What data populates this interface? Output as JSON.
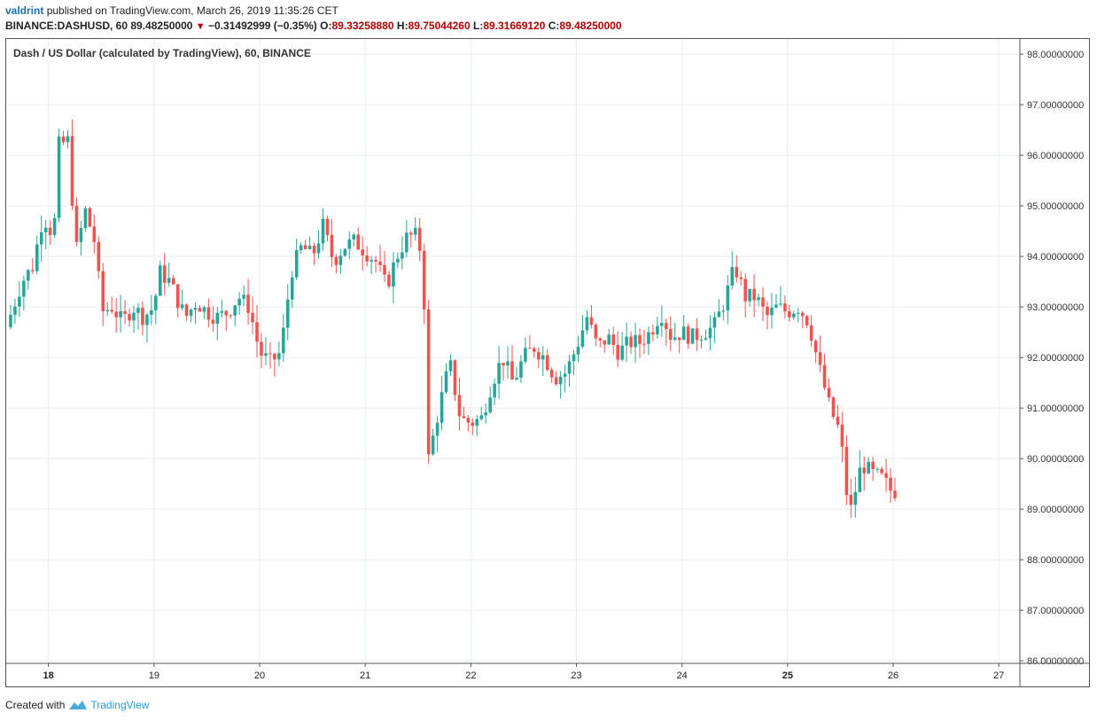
{
  "header": {
    "author": "valdrint",
    "published_text": "published on TradingView.com, March 26, 2019 11:35:26 CET"
  },
  "quote": {
    "symbol": "BINANCE:DASHUSD, 60",
    "last": "89.48250000",
    "change": "−0.31492999 (−0.35%)",
    "o_label": "O:",
    "o": "89.33258880",
    "h_label": "H:",
    "h": "89.75044260",
    "l_label": "L:",
    "l": "89.31669120",
    "c_label": "C:",
    "c": "89.48250000",
    "down_color": "#c00000"
  },
  "footer": {
    "created_with": "Created with",
    "brand": "TradingView",
    "brand_color": "#2a9bd6"
  },
  "chart_data": {
    "type": "candlestick",
    "title": "Dash / US Dollar (calculated by TradingView), 60, BINANCE",
    "x_ticks": [
      "18",
      "19",
      "20",
      "21",
      "22",
      "23",
      "24",
      "25",
      "26",
      "27"
    ],
    "x_ticks_bold": [
      "18",
      "25"
    ],
    "y_ticks": [
      "98.00000000",
      "97.00000000",
      "96.00000000",
      "95.00000000",
      "94.00000000",
      "93.00000000",
      "92.00000000",
      "91.00000000",
      "90.00000000",
      "89.00000000",
      "88.00000000",
      "87.00000000",
      "86.00000000"
    ],
    "ylim": [
      85.95,
      98.3
    ],
    "x_range_days": [
      17.6,
      27.2
    ],
    "grid": true,
    "up_color": "#26a69a",
    "down_color": "#ef5350",
    "candles_close_path": [
      [
        17.6,
        92.6
      ],
      [
        17.75,
        93.5
      ],
      [
        17.85,
        93.8
      ],
      [
        17.95,
        94.8
      ],
      [
        18.05,
        94.4
      ],
      [
        18.1,
        96.2
      ],
      [
        18.2,
        96.3
      ],
      [
        18.25,
        94.0
      ],
      [
        18.35,
        94.9
      ],
      [
        18.45,
        94.2
      ],
      [
        18.5,
        92.9
      ],
      [
        18.6,
        93.0
      ],
      [
        18.7,
        92.7
      ],
      [
        18.8,
        93.0
      ],
      [
        18.9,
        92.8
      ],
      [
        19.0,
        93.0
      ],
      [
        19.05,
        93.7
      ],
      [
        19.15,
        93.5
      ],
      [
        19.25,
        93.0
      ],
      [
        19.3,
        92.8
      ],
      [
        19.4,
        93.1
      ],
      [
        19.5,
        92.9
      ],
      [
        19.6,
        92.8
      ],
      [
        19.7,
        92.9
      ],
      [
        19.8,
        93.2
      ],
      [
        19.9,
        93.0
      ],
      [
        20.0,
        92.1
      ],
      [
        20.1,
        91.9
      ],
      [
        20.2,
        92.1
      ],
      [
        20.3,
        93.7
      ],
      [
        20.4,
        94.2
      ],
      [
        20.5,
        94.0
      ],
      [
        20.6,
        94.6
      ],
      [
        20.7,
        93.9
      ],
      [
        20.8,
        94.2
      ],
      [
        20.9,
        94.3
      ],
      [
        21.0,
        94.1
      ],
      [
        21.1,
        93.9
      ],
      [
        21.2,
        93.4
      ],
      [
        21.3,
        94.0
      ],
      [
        21.4,
        94.4
      ],
      [
        21.5,
        94.4
      ],
      [
        21.55,
        93.7
      ],
      [
        21.6,
        90.0
      ],
      [
        21.7,
        91.0
      ],
      [
        21.8,
        91.9
      ],
      [
        21.9,
        90.8
      ],
      [
        22.0,
        90.7
      ],
      [
        22.1,
        90.8
      ],
      [
        22.2,
        91.5
      ],
      [
        22.3,
        92.0
      ],
      [
        22.4,
        91.5
      ],
      [
        22.5,
        92.0
      ],
      [
        22.6,
        92.2
      ],
      [
        22.7,
        92.0
      ],
      [
        22.8,
        91.6
      ],
      [
        22.9,
        91.7
      ],
      [
        23.0,
        92.2
      ],
      [
        23.1,
        92.8
      ],
      [
        23.2,
        92.2
      ],
      [
        23.3,
        92.4
      ],
      [
        23.4,
        92.1
      ],
      [
        23.5,
        92.3
      ],
      [
        23.6,
        92.3
      ],
      [
        23.7,
        92.5
      ],
      [
        23.8,
        92.9
      ],
      [
        23.9,
        92.4
      ],
      [
        24.0,
        92.5
      ],
      [
        24.1,
        92.4
      ],
      [
        24.2,
        92.5
      ],
      [
        24.3,
        92.6
      ],
      [
        24.4,
        93.1
      ],
      [
        24.5,
        93.8
      ],
      [
        24.6,
        93.2
      ],
      [
        24.7,
        93.2
      ],
      [
        24.8,
        92.8
      ],
      [
        24.9,
        93.0
      ],
      [
        25.0,
        92.9
      ],
      [
        25.1,
        93.0
      ],
      [
        25.2,
        92.7
      ],
      [
        25.3,
        91.8
      ],
      [
        25.4,
        91.0
      ],
      [
        25.5,
        90.5
      ],
      [
        25.55,
        89.4
      ],
      [
        25.6,
        89.0
      ],
      [
        25.7,
        89.9
      ],
      [
        25.8,
        89.7
      ],
      [
        25.9,
        89.6
      ],
      [
        26.0,
        89.3
      ],
      [
        26.05,
        89.48
      ]
    ]
  }
}
